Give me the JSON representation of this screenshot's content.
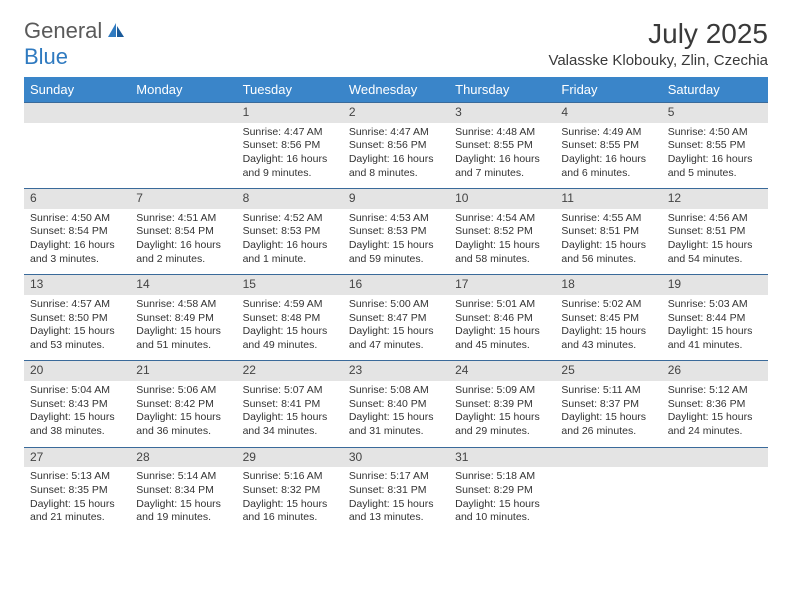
{
  "logo": {
    "text1": "General",
    "text2": "Blue"
  },
  "title": "July 2025",
  "location": "Valasske Klobouky, Zlin, Czechia",
  "colors": {
    "header_bg": "#3a85c9",
    "header_text": "#ffffff",
    "daynum_bg": "#e4e4e4",
    "border": "#3a6a9a",
    "logo_gray": "#5a5a5a",
    "logo_blue": "#2f7ac0"
  },
  "weekdays": [
    "Sunday",
    "Monday",
    "Tuesday",
    "Wednesday",
    "Thursday",
    "Friday",
    "Saturday"
  ],
  "weeks": [
    [
      null,
      null,
      {
        "n": "1",
        "sr": "4:47 AM",
        "ss": "8:56 PM",
        "dl": "16 hours and 9 minutes."
      },
      {
        "n": "2",
        "sr": "4:47 AM",
        "ss": "8:56 PM",
        "dl": "16 hours and 8 minutes."
      },
      {
        "n": "3",
        "sr": "4:48 AM",
        "ss": "8:55 PM",
        "dl": "16 hours and 7 minutes."
      },
      {
        "n": "4",
        "sr": "4:49 AM",
        "ss": "8:55 PM",
        "dl": "16 hours and 6 minutes."
      },
      {
        "n": "5",
        "sr": "4:50 AM",
        "ss": "8:55 PM",
        "dl": "16 hours and 5 minutes."
      }
    ],
    [
      {
        "n": "6",
        "sr": "4:50 AM",
        "ss": "8:54 PM",
        "dl": "16 hours and 3 minutes."
      },
      {
        "n": "7",
        "sr": "4:51 AM",
        "ss": "8:54 PM",
        "dl": "16 hours and 2 minutes."
      },
      {
        "n": "8",
        "sr": "4:52 AM",
        "ss": "8:53 PM",
        "dl": "16 hours and 1 minute."
      },
      {
        "n": "9",
        "sr": "4:53 AM",
        "ss": "8:53 PM",
        "dl": "15 hours and 59 minutes."
      },
      {
        "n": "10",
        "sr": "4:54 AM",
        "ss": "8:52 PM",
        "dl": "15 hours and 58 minutes."
      },
      {
        "n": "11",
        "sr": "4:55 AM",
        "ss": "8:51 PM",
        "dl": "15 hours and 56 minutes."
      },
      {
        "n": "12",
        "sr": "4:56 AM",
        "ss": "8:51 PM",
        "dl": "15 hours and 54 minutes."
      }
    ],
    [
      {
        "n": "13",
        "sr": "4:57 AM",
        "ss": "8:50 PM",
        "dl": "15 hours and 53 minutes."
      },
      {
        "n": "14",
        "sr": "4:58 AM",
        "ss": "8:49 PM",
        "dl": "15 hours and 51 minutes."
      },
      {
        "n": "15",
        "sr": "4:59 AM",
        "ss": "8:48 PM",
        "dl": "15 hours and 49 minutes."
      },
      {
        "n": "16",
        "sr": "5:00 AM",
        "ss": "8:47 PM",
        "dl": "15 hours and 47 minutes."
      },
      {
        "n": "17",
        "sr": "5:01 AM",
        "ss": "8:46 PM",
        "dl": "15 hours and 45 minutes."
      },
      {
        "n": "18",
        "sr": "5:02 AM",
        "ss": "8:45 PM",
        "dl": "15 hours and 43 minutes."
      },
      {
        "n": "19",
        "sr": "5:03 AM",
        "ss": "8:44 PM",
        "dl": "15 hours and 41 minutes."
      }
    ],
    [
      {
        "n": "20",
        "sr": "5:04 AM",
        "ss": "8:43 PM",
        "dl": "15 hours and 38 minutes."
      },
      {
        "n": "21",
        "sr": "5:06 AM",
        "ss": "8:42 PM",
        "dl": "15 hours and 36 minutes."
      },
      {
        "n": "22",
        "sr": "5:07 AM",
        "ss": "8:41 PM",
        "dl": "15 hours and 34 minutes."
      },
      {
        "n": "23",
        "sr": "5:08 AM",
        "ss": "8:40 PM",
        "dl": "15 hours and 31 minutes."
      },
      {
        "n": "24",
        "sr": "5:09 AM",
        "ss": "8:39 PM",
        "dl": "15 hours and 29 minutes."
      },
      {
        "n": "25",
        "sr": "5:11 AM",
        "ss": "8:37 PM",
        "dl": "15 hours and 26 minutes."
      },
      {
        "n": "26",
        "sr": "5:12 AM",
        "ss": "8:36 PM",
        "dl": "15 hours and 24 minutes."
      }
    ],
    [
      {
        "n": "27",
        "sr": "5:13 AM",
        "ss": "8:35 PM",
        "dl": "15 hours and 21 minutes."
      },
      {
        "n": "28",
        "sr": "5:14 AM",
        "ss": "8:34 PM",
        "dl": "15 hours and 19 minutes."
      },
      {
        "n": "29",
        "sr": "5:16 AM",
        "ss": "8:32 PM",
        "dl": "15 hours and 16 minutes."
      },
      {
        "n": "30",
        "sr": "5:17 AM",
        "ss": "8:31 PM",
        "dl": "15 hours and 13 minutes."
      },
      {
        "n": "31",
        "sr": "5:18 AM",
        "ss": "8:29 PM",
        "dl": "15 hours and 10 minutes."
      },
      null,
      null
    ]
  ]
}
